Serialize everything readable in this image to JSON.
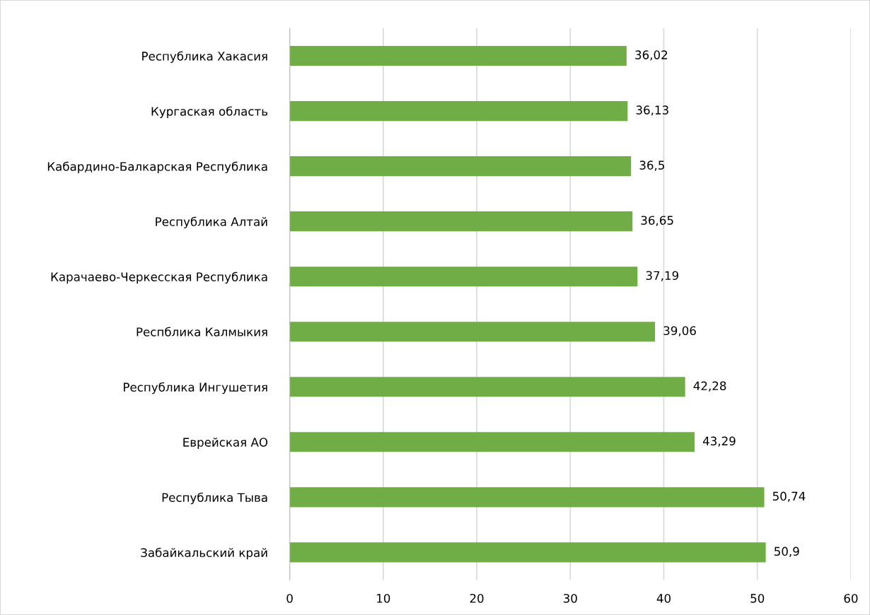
{
  "chart_data": {
    "type": "bar",
    "orientation": "horizontal",
    "categories": [
      "Республика Хакасия",
      "Кургаская область",
      "Кабардино-Балкарская Республика",
      "Республика Алтай",
      "Карачаево-Черкесская Республика",
      "Респблика Калмыкия",
      "Республика Ингушетия",
      "Еврейская АО",
      "Республика Тыва",
      "Забайкальский край"
    ],
    "values": [
      36.02,
      36.13,
      36.5,
      36.65,
      37.19,
      39.06,
      42.28,
      43.29,
      50.74,
      50.9
    ],
    "value_labels": [
      "36,02",
      "36,13",
      "36,5",
      "36,65",
      "37,19",
      "39,06",
      "42,28",
      "43,29",
      "50,74",
      "50,9"
    ],
    "color": "#70ad47",
    "xlim": [
      0,
      60
    ],
    "xticks": [
      0,
      10,
      20,
      30,
      40,
      50,
      60
    ],
    "grid": "x"
  }
}
